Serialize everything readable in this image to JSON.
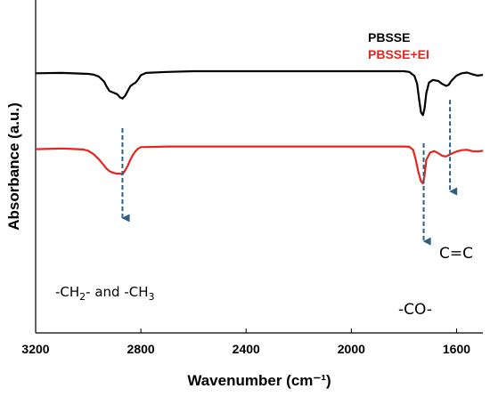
{
  "chart_data": {
    "type": "line",
    "title": "",
    "xlabel": "Wavenumber (cm⁻¹)",
    "ylabel": "Absorbance (a.u.)",
    "xlim": [
      3200,
      1500
    ],
    "x_reversed": true,
    "x_ticks": [
      3200,
      2800,
      2400,
      2000,
      1600
    ],
    "y_ticks_shown": false,
    "grid": false,
    "legend_position": "top-right",
    "series": [
      {
        "name": "PBSSE",
        "color": "#000000",
        "baseline_offset": 0.78,
        "points": [
          [
            3200,
            0.78
          ],
          [
            3100,
            0.781
          ],
          [
            3000,
            0.778
          ],
          [
            2980,
            0.776
          ],
          [
            2960,
            0.77
          ],
          [
            2940,
            0.755
          ],
          [
            2930,
            0.74
          ],
          [
            2920,
            0.727
          ],
          [
            2905,
            0.722
          ],
          [
            2890,
            0.717
          ],
          [
            2880,
            0.708
          ],
          [
            2870,
            0.704
          ],
          [
            2860,
            0.712
          ],
          [
            2850,
            0.727
          ],
          [
            2840,
            0.741
          ],
          [
            2830,
            0.747
          ],
          [
            2820,
            0.752
          ],
          [
            2810,
            0.762
          ],
          [
            2800,
            0.774
          ],
          [
            2780,
            0.781
          ],
          [
            2700,
            0.784
          ],
          [
            2600,
            0.786
          ],
          [
            2400,
            0.786
          ],
          [
            2200,
            0.786
          ],
          [
            2000,
            0.786
          ],
          [
            1900,
            0.786
          ],
          [
            1800,
            0.786
          ],
          [
            1780,
            0.784
          ],
          [
            1760,
            0.772
          ],
          [
            1750,
            0.748
          ],
          [
            1742,
            0.7
          ],
          [
            1735,
            0.662
          ],
          [
            1728,
            0.654
          ],
          [
            1722,
            0.672
          ],
          [
            1715,
            0.72
          ],
          [
            1705,
            0.752
          ],
          [
            1690,
            0.76
          ],
          [
            1670,
            0.757
          ],
          [
            1655,
            0.748
          ],
          [
            1640,
            0.742
          ],
          [
            1630,
            0.745
          ],
          [
            1620,
            0.757
          ],
          [
            1600,
            0.773
          ],
          [
            1580,
            0.78
          ],
          [
            1560,
            0.782
          ],
          [
            1540,
            0.777
          ],
          [
            1520,
            0.773
          ],
          [
            1500,
            0.775
          ]
        ]
      },
      {
        "name": "PBSSE+EI",
        "color": "#e8231e",
        "baseline_offset": 0.55,
        "points": [
          [
            3200,
            0.552
          ],
          [
            3100,
            0.554
          ],
          [
            3020,
            0.551
          ],
          [
            3000,
            0.547
          ],
          [
            2980,
            0.537
          ],
          [
            2960,
            0.522
          ],
          [
            2940,
            0.503
          ],
          [
            2930,
            0.493
          ],
          [
            2920,
            0.486
          ],
          [
            2905,
            0.481
          ],
          [
            2890,
            0.478
          ],
          [
            2880,
            0.479
          ],
          [
            2870,
            0.476
          ],
          [
            2860,
            0.488
          ],
          [
            2850,
            0.502
          ],
          [
            2840,
            0.52
          ],
          [
            2830,
            0.535
          ],
          [
            2820,
            0.546
          ],
          [
            2810,
            0.554
          ],
          [
            2800,
            0.558
          ],
          [
            2700,
            0.56
          ],
          [
            2600,
            0.56
          ],
          [
            2400,
            0.56
          ],
          [
            2200,
            0.56
          ],
          [
            2000,
            0.56
          ],
          [
            1900,
            0.56
          ],
          [
            1800,
            0.56
          ],
          [
            1780,
            0.559
          ],
          [
            1765,
            0.55
          ],
          [
            1755,
            0.52
          ],
          [
            1745,
            0.482
          ],
          [
            1735,
            0.455
          ],
          [
            1728,
            0.449
          ],
          [
            1722,
            0.47
          ],
          [
            1715,
            0.52
          ],
          [
            1700,
            0.542
          ],
          [
            1685,
            0.546
          ],
          [
            1670,
            0.54
          ],
          [
            1655,
            0.532
          ],
          [
            1640,
            0.53
          ],
          [
            1625,
            0.536
          ],
          [
            1600,
            0.545
          ],
          [
            1580,
            0.549
          ],
          [
            1560,
            0.55
          ],
          [
            1540,
            0.546
          ],
          [
            1520,
            0.545
          ],
          [
            1500,
            0.547
          ]
        ]
      }
    ],
    "annotations": [
      {
        "id": "ch",
        "x": 2870,
        "y_from": 0.615,
        "y_to": 0.345,
        "label_parts": [
          "-CH",
          "2",
          "- and -CH",
          "3"
        ]
      },
      {
        "id": "co",
        "x": 1725,
        "y_from": 0.57,
        "y_to": 0.275,
        "label": "-CO-"
      },
      {
        "id": "cc",
        "x": 1625,
        "y_from": 0.7,
        "y_to": 0.425,
        "label": "C=C"
      }
    ],
    "arrow_color": "#2e5f86"
  }
}
